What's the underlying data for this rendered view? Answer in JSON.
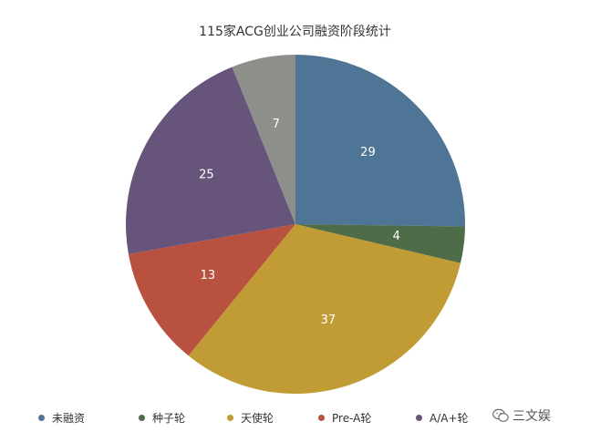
{
  "chart_data": {
    "type": "pie",
    "title": "115家ACG创业公司融资阶段统计",
    "categories": [
      "未融资",
      "种子轮",
      "天使轮",
      "Pre-A轮",
      "A/A+轮",
      ""
    ],
    "values": [
      29,
      4,
      37,
      13,
      25,
      7
    ],
    "colors": [
      "#4e7595",
      "#4d6c47",
      "#c19b34",
      "#b85140",
      "#66547a",
      "#8c8f8a"
    ],
    "start_angle": "12 o'clock",
    "direction": "clockwise",
    "legend_position": "bottom"
  },
  "legend": {
    "items": [
      {
        "label": "未融资",
        "color": "#4e7595"
      },
      {
        "label": "种子轮",
        "color": "#4d6c47"
      },
      {
        "label": "天使轮",
        "color": "#c19b34"
      },
      {
        "label": "Pre-A轮",
        "color": "#b85140"
      },
      {
        "label": "A/A+轮",
        "color": "#66547a"
      }
    ]
  },
  "watermark": {
    "text": "三文娱",
    "icon": "wechat-icon"
  }
}
